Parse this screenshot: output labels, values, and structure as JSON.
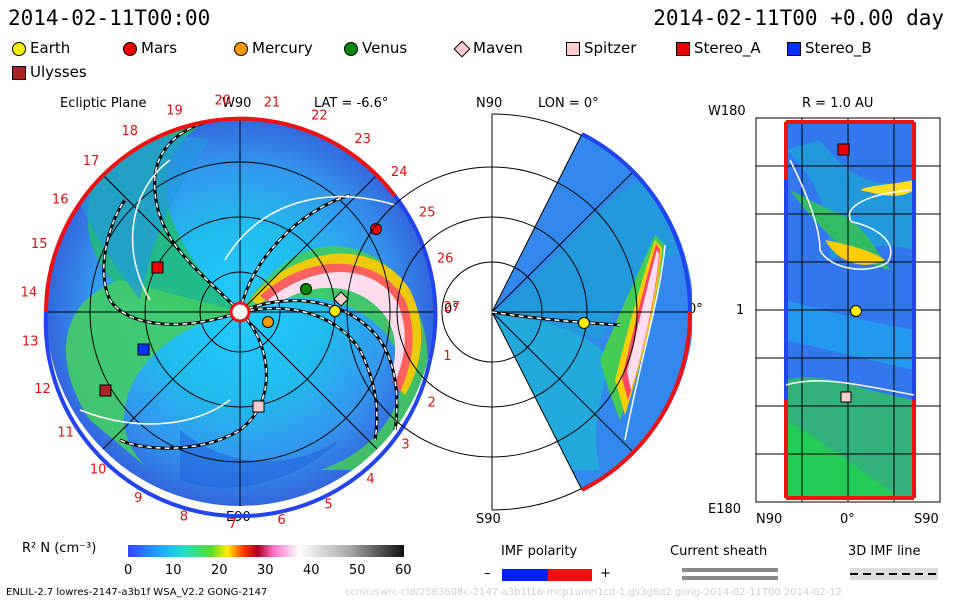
{
  "header": {
    "left_time": "2014-02-11T00:00",
    "right_time": "2014-02-11T00 +0.00 day"
  },
  "legend": [
    {
      "name": "Earth",
      "color": "#ffee00",
      "shape": "circle"
    },
    {
      "name": "Mars",
      "color": "#ee0000",
      "shape": "circle"
    },
    {
      "name": "Mercury",
      "color": "#ff9900",
      "shape": "circle"
    },
    {
      "name": "Venus",
      "color": "#008800",
      "shape": "circle"
    },
    {
      "name": "Maven",
      "color": "#ffcccc",
      "shape": "diamond"
    },
    {
      "name": "Spitzer",
      "color": "#ffcccc",
      "shape": "square"
    },
    {
      "name": "Stereo_A",
      "color": "#ee0000",
      "shape": "square"
    },
    {
      "name": "Stereo_B",
      "color": "#0033ff",
      "shape": "square"
    },
    {
      "name": "Ulysses",
      "color": "#aa2222",
      "shape": "square"
    }
  ],
  "panels": {
    "ecliptic": {
      "title": "Ecliptic Plane",
      "lat": "LAT = -6.6°",
      "top_label": "W90",
      "bottom_label": "E90",
      "right_label": "0°",
      "rotations": [
        "1",
        "2",
        "3",
        "4",
        "5",
        "6",
        "7",
        "8",
        "9",
        "10",
        "11",
        "12",
        "13",
        "14",
        "15",
        "16",
        "17",
        "18",
        "19",
        "20",
        "21",
        "22",
        "23",
        "24",
        "25",
        "26",
        "27"
      ]
    },
    "meridional": {
      "top_label": "N90",
      "lon": "LON = 0°",
      "bottom_label": "S90",
      "right_label": "0°"
    },
    "sphere": {
      "r_label": "R = 1.0 AU",
      "top_left": "W180",
      "mid_left": "1",
      "bottom_left": "E180",
      "x_labels": [
        "N90",
        "0°",
        "S90"
      ]
    }
  },
  "colorbar": {
    "label": "R² N (cm⁻³)",
    "ticks": [
      "0",
      "10",
      "20",
      "30",
      "40",
      "50",
      "60"
    ]
  },
  "imf": {
    "polarity_label": "IMF polarity",
    "minus": "–",
    "plus": "+",
    "sheath_label": "Current sheath",
    "line_label": "3D IMF line"
  },
  "footer": {
    "model": "ENLIL-2.7 lowres-2147-a3b1f WSA_V2.2 GONG-2147",
    "faint": "ccmc/swrc-cld/2563608c-2147-a3b1f16-mcp1umn1cd-1.gs3g6d2 gong-2014-02-11T00   2014-02-12"
  },
  "chart_data": {
    "type": "heatmap",
    "quantity": "R² N (cm⁻³)",
    "color_range": [
      0,
      60
    ],
    "time": "2014-02-11T00:00",
    "bodies": [
      "Earth",
      "Mars",
      "Mercury",
      "Venus",
      "Maven",
      "Spitzer",
      "Stereo_A",
      "Stereo_B",
      "Ulysses"
    ]
  }
}
